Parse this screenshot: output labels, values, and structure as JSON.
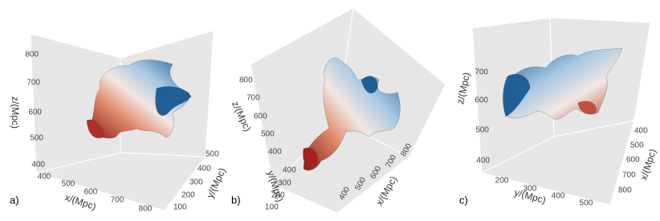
{
  "panels": [
    {
      "label": "a)",
      "axes": {
        "z": {
          "title": "z/(Mpc)",
          "ticks": [
            "800",
            "700",
            "600",
            "500",
            "400"
          ]
        },
        "x": {
          "title": "x/(Mpc)",
          "ticks": [
            "400",
            "500",
            "600",
            "700",
            "800"
          ]
        },
        "y": {
          "title": "y/(Mpc)",
          "ticks": [
            "500",
            "400",
            "300",
            "200",
            "100"
          ]
        }
      }
    },
    {
      "label": "b)",
      "axes": {
        "z": {
          "title": "z/(Mpc)",
          "ticks": [
            "800",
            "700",
            "600",
            "500",
            "400"
          ]
        },
        "y": {
          "title": "y/(Mpc)",
          "ticks": [
            "400",
            "300",
            "200",
            "100"
          ]
        },
        "x": {
          "title": "x/(Mpc)",
          "ticks": [
            "400",
            "500",
            "600",
            "700",
            "800"
          ]
        }
      }
    },
    {
      "label": "c)",
      "axes": {
        "z": {
          "title": "z/(Mpc)",
          "ticks": [
            "700",
            "600",
            "500",
            "400"
          ]
        },
        "y": {
          "title": "y/(Mpc)",
          "ticks": [
            "200",
            "300",
            "400",
            "500"
          ]
        },
        "x": {
          "title": "x/(Mpc)",
          "ticks": [
            "400",
            "500",
            "600",
            "700",
            "800"
          ]
        }
      }
    }
  ]
}
